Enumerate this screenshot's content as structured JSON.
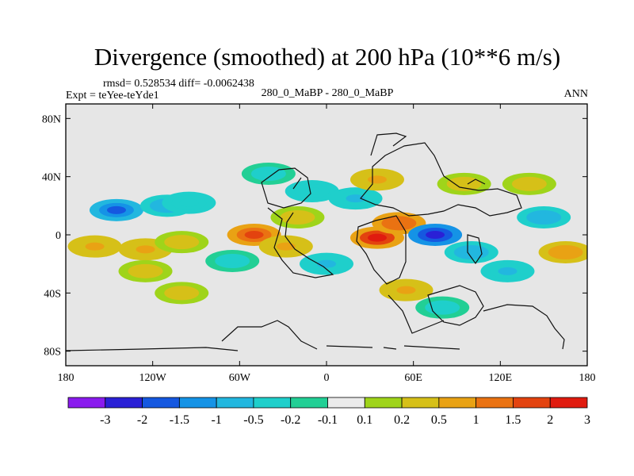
{
  "chart_data": {
    "type": "heatmap",
    "title": "Divergence (smoothed) at 200 hPa (10**6 m/s)",
    "stats": "rmsd= 0.528534 diff= -0.0062438",
    "experiment": "Expt = teYee-teYde1",
    "case": "280_0_MaBP - 280_0_MaBP",
    "season": "ANN",
    "xlim": [
      -180,
      180
    ],
    "ylim": [
      -90,
      90
    ],
    "x_ticks": [
      {
        "value": -180,
        "label": "180"
      },
      {
        "value": -120,
        "label": "120W"
      },
      {
        "value": -60,
        "label": "60W"
      },
      {
        "value": 0,
        "label": "0"
      },
      {
        "value": 60,
        "label": "60E"
      },
      {
        "value": 120,
        "label": "120E"
      },
      {
        "value": 180,
        "label": "180"
      }
    ],
    "y_ticks": [
      {
        "value": 80,
        "label": "80N"
      },
      {
        "value": 40,
        "label": "40N"
      },
      {
        "value": 0,
        "label": "0"
      },
      {
        "value": -40,
        "label": "40S"
      },
      {
        "value": -80,
        "label": "80S"
      }
    ],
    "contour_levels": [
      "-3",
      "-2",
      "-1.5",
      "-1",
      "-0.5",
      "-0.2",
      "-0.1",
      "0.1",
      "0.2",
      "0.5",
      "1",
      "1.5",
      "2",
      "3"
    ],
    "colors": [
      "#8a1bee",
      "#2a20d6",
      "#1558e0",
      "#1593e6",
      "#22b7df",
      "#1fcfcb",
      "#22cf95",
      "#ebebeb",
      "#9fd41a",
      "#d6c018",
      "#e9a214",
      "#ea7212",
      "#e3430f",
      "#e01b0f"
    ],
    "features": [
      {
        "lon": -145,
        "lat": 17,
        "value": -1.8
      },
      {
        "lon": -110,
        "lat": 20,
        "value": -1.0
      },
      {
        "lon": -95,
        "lat": 22,
        "value": -0.5
      },
      {
        "lon": -160,
        "lat": -8,
        "value": 0.6
      },
      {
        "lon": -125,
        "lat": -10,
        "value": 0.5
      },
      {
        "lon": -100,
        "lat": -5,
        "value": 0.4
      },
      {
        "lon": -50,
        "lat": 0,
        "value": 1.6
      },
      {
        "lon": -28,
        "lat": -8,
        "value": 0.6
      },
      {
        "lon": -65,
        "lat": -18,
        "value": -0.4
      },
      {
        "lon": -20,
        "lat": 12,
        "value": 0.4
      },
      {
        "lon": -10,
        "lat": 30,
        "value": -0.5
      },
      {
        "lon": -40,
        "lat": 42,
        "value": -0.3
      },
      {
        "lon": 0,
        "lat": -20,
        "value": -0.6
      },
      {
        "lon": 35,
        "lat": -2,
        "value": 2.0
      },
      {
        "lon": 50,
        "lat": 8,
        "value": 1.3
      },
      {
        "lon": 20,
        "lat": 25,
        "value": -0.6
      },
      {
        "lon": 35,
        "lat": 38,
        "value": 0.6
      },
      {
        "lon": 75,
        "lat": 0,
        "value": -2.5
      },
      {
        "lon": 100,
        "lat": -12,
        "value": -0.9
      },
      {
        "lon": 125,
        "lat": -25,
        "value": -0.6
      },
      {
        "lon": 150,
        "lat": 12,
        "value": -0.7
      },
      {
        "lon": 165,
        "lat": -12,
        "value": 0.7
      },
      {
        "lon": 95,
        "lat": 35,
        "value": 0.4
      },
      {
        "lon": 140,
        "lat": 35,
        "value": 0.3
      },
      {
        "lon": -125,
        "lat": -25,
        "value": 0.4
      },
      {
        "lon": 55,
        "lat": -38,
        "value": 0.5
      },
      {
        "lon": 80,
        "lat": -50,
        "value": -0.3
      },
      {
        "lon": -100,
        "lat": -40,
        "value": 0.3
      }
    ]
  }
}
